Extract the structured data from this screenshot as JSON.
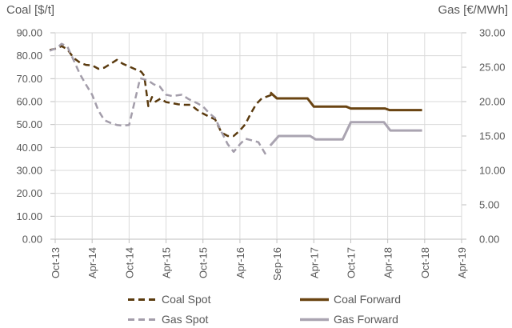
{
  "legend": {
    "items": [
      {
        "label": "Coal Spot"
      },
      {
        "label": "Gas Spot"
      },
      {
        "label": "Coal Forward"
      },
      {
        "label": "Gas Forward"
      }
    ]
  },
  "chart_data": {
    "type": "line",
    "title": "",
    "x_unit": "t = x-axis tick index, ticks equally spaced: 0=Oct-13, 1=Apr-14, 2=Oct-14, 3=Apr-15, 4=Oct-15, 5=Apr-16, 6=Sep-16, 7=Apr-17, 8=Oct-17, 9=Apr-18, 10=Oct-18, 11=Apr-19",
    "x_ticks": [
      "Oct-13",
      "Apr-14",
      "Oct-14",
      "Apr-15",
      "Oct-15",
      "Apr-16",
      "Sep-16",
      "Apr-17",
      "Oct-17",
      "Apr-18",
      "Oct-18",
      "Apr-19"
    ],
    "y_left": {
      "title": "Coal [$/t]",
      "min": 0,
      "max": 90,
      "tick_labels": [
        "90.00",
        "80.00",
        "70.00",
        "60.00",
        "50.00",
        "40.00",
        "30.00",
        "20.00",
        "10.00",
        "0.00"
      ]
    },
    "y_right": {
      "title": "Gas [€/MWh]",
      "min": 0,
      "max": 30,
      "tick_labels": [
        "30.00",
        "25.00",
        "20.00",
        "15.00",
        "10.00",
        "5.00",
        "0.00"
      ]
    },
    "grid": true,
    "legend_position": "bottom",
    "gridline_color": "#dadada",
    "axis_color": "#bfbfbf",
    "text_color": "#595959",
    "series": [
      {
        "name": "Coal Spot",
        "axis": "left",
        "style": "dashed",
        "color": "#5a3a0e",
        "width": 2.5,
        "coverage": "monthly, Oct-13 to Sep-16",
        "points": [
          [
            -0.15,
            82.5
          ],
          [
            0.05,
            83.2
          ],
          [
            0.17,
            84.2
          ],
          [
            0.33,
            82.8
          ],
          [
            0.5,
            79.0
          ],
          [
            0.67,
            77.0
          ],
          [
            0.83,
            76.0
          ],
          [
            1.0,
            75.8
          ],
          [
            1.17,
            74.3
          ],
          [
            1.33,
            74.8
          ],
          [
            1.5,
            76.5
          ],
          [
            1.67,
            78.2
          ],
          [
            1.83,
            76.5
          ],
          [
            2.0,
            75.3
          ],
          [
            2.17,
            74.1
          ],
          [
            2.33,
            73.0
          ],
          [
            2.41,
            71.3
          ],
          [
            2.52,
            58.0
          ],
          [
            2.62,
            62.0
          ],
          [
            2.72,
            60.0
          ],
          [
            2.85,
            61.3
          ],
          [
            3.0,
            59.8
          ],
          [
            3.17,
            59.3
          ],
          [
            3.33,
            58.8
          ],
          [
            3.5,
            58.6
          ],
          [
            3.67,
            58.6
          ],
          [
            3.83,
            56.5
          ],
          [
            4.0,
            54.8
          ],
          [
            4.17,
            53.4
          ],
          [
            4.33,
            52.2
          ],
          [
            4.5,
            46.5
          ],
          [
            4.67,
            45.0
          ],
          [
            4.83,
            45.0
          ],
          [
            5.0,
            47.4
          ],
          [
            5.15,
            50.2
          ],
          [
            5.28,
            54.4
          ],
          [
            5.44,
            58.9
          ],
          [
            5.59,
            61.4
          ],
          [
            5.87,
            63.0
          ]
        ]
      },
      {
        "name": "Gas Spot",
        "axis": "right",
        "style": "dashed",
        "color": "#a39daa",
        "width": 2.5,
        "coverage": "monthly, Oct-13 to Aug-16",
        "points": [
          [
            -0.15,
            27.4
          ],
          [
            0.05,
            27.8
          ],
          [
            0.17,
            28.4
          ],
          [
            0.33,
            28.0
          ],
          [
            0.5,
            26.0
          ],
          [
            0.67,
            24.0
          ],
          [
            0.83,
            22.5
          ],
          [
            1.0,
            21.0
          ],
          [
            1.17,
            18.7
          ],
          [
            1.33,
            17.3
          ],
          [
            1.5,
            16.9
          ],
          [
            1.67,
            16.6
          ],
          [
            1.83,
            16.5
          ],
          [
            2.0,
            16.6
          ],
          [
            2.15,
            20.0
          ],
          [
            2.3,
            23.4
          ],
          [
            2.5,
            23.1
          ],
          [
            2.67,
            22.5
          ],
          [
            2.83,
            22.2
          ],
          [
            3.0,
            21.0
          ],
          [
            3.17,
            20.8
          ],
          [
            3.43,
            21.0
          ],
          [
            3.6,
            20.4
          ],
          [
            3.83,
            19.8
          ],
          [
            4.0,
            19.3
          ],
          [
            4.17,
            18.3
          ],
          [
            4.33,
            17.6
          ],
          [
            4.5,
            15.6
          ],
          [
            4.67,
            13.8
          ],
          [
            4.83,
            12.7
          ],
          [
            5.0,
            13.8
          ],
          [
            5.15,
            14.6
          ],
          [
            5.3,
            14.4
          ],
          [
            5.5,
            14.1
          ],
          [
            5.72,
            12.1
          ]
        ]
      },
      {
        "name": "Coal Forward",
        "axis": "left",
        "style": "solid",
        "color": "#6a4412",
        "width": 3,
        "segments": [
          {
            "from": "Sep-16",
            "to": "Mar-17",
            "value": 61.4
          },
          {
            "from": "Apr-17",
            "to": "Sep-17",
            "value": 57.8
          },
          {
            "from": "Oct-17",
            "to": "Mar-18",
            "value": 57.0
          },
          {
            "from": "Apr-18",
            "to": "Oct-18",
            "value": 56.3
          }
        ],
        "points": [
          [
            5.82,
            64.0
          ],
          [
            6.0,
            61.4
          ],
          [
            6.83,
            61.4
          ],
          [
            7.0,
            57.8
          ],
          [
            7.88,
            57.8
          ],
          [
            8.0,
            57.0
          ],
          [
            8.93,
            57.0
          ],
          [
            9.05,
            56.3
          ],
          [
            9.93,
            56.3
          ]
        ]
      },
      {
        "name": "Gas Forward",
        "axis": "right",
        "style": "solid",
        "color": "#aaa4b1",
        "width": 3,
        "segments": [
          {
            "from": "Sep-16",
            "to": "Mar-17",
            "value": 15.0
          },
          {
            "from": "Apr-17",
            "to": "Sep-17",
            "value": 14.5
          },
          {
            "from": "Oct-17",
            "to": "Mar-18",
            "value": 17.0
          },
          {
            "from": "Apr-18",
            "to": "Oct-18",
            "value": 15.8
          }
        ],
        "points": [
          [
            5.82,
            13.6
          ],
          [
            6.05,
            15.0
          ],
          [
            6.9,
            15.0
          ],
          [
            7.05,
            14.5
          ],
          [
            7.78,
            14.5
          ],
          [
            8.0,
            17.0
          ],
          [
            8.9,
            17.0
          ],
          [
            9.07,
            15.8
          ],
          [
            9.93,
            15.8
          ]
        ]
      }
    ]
  }
}
